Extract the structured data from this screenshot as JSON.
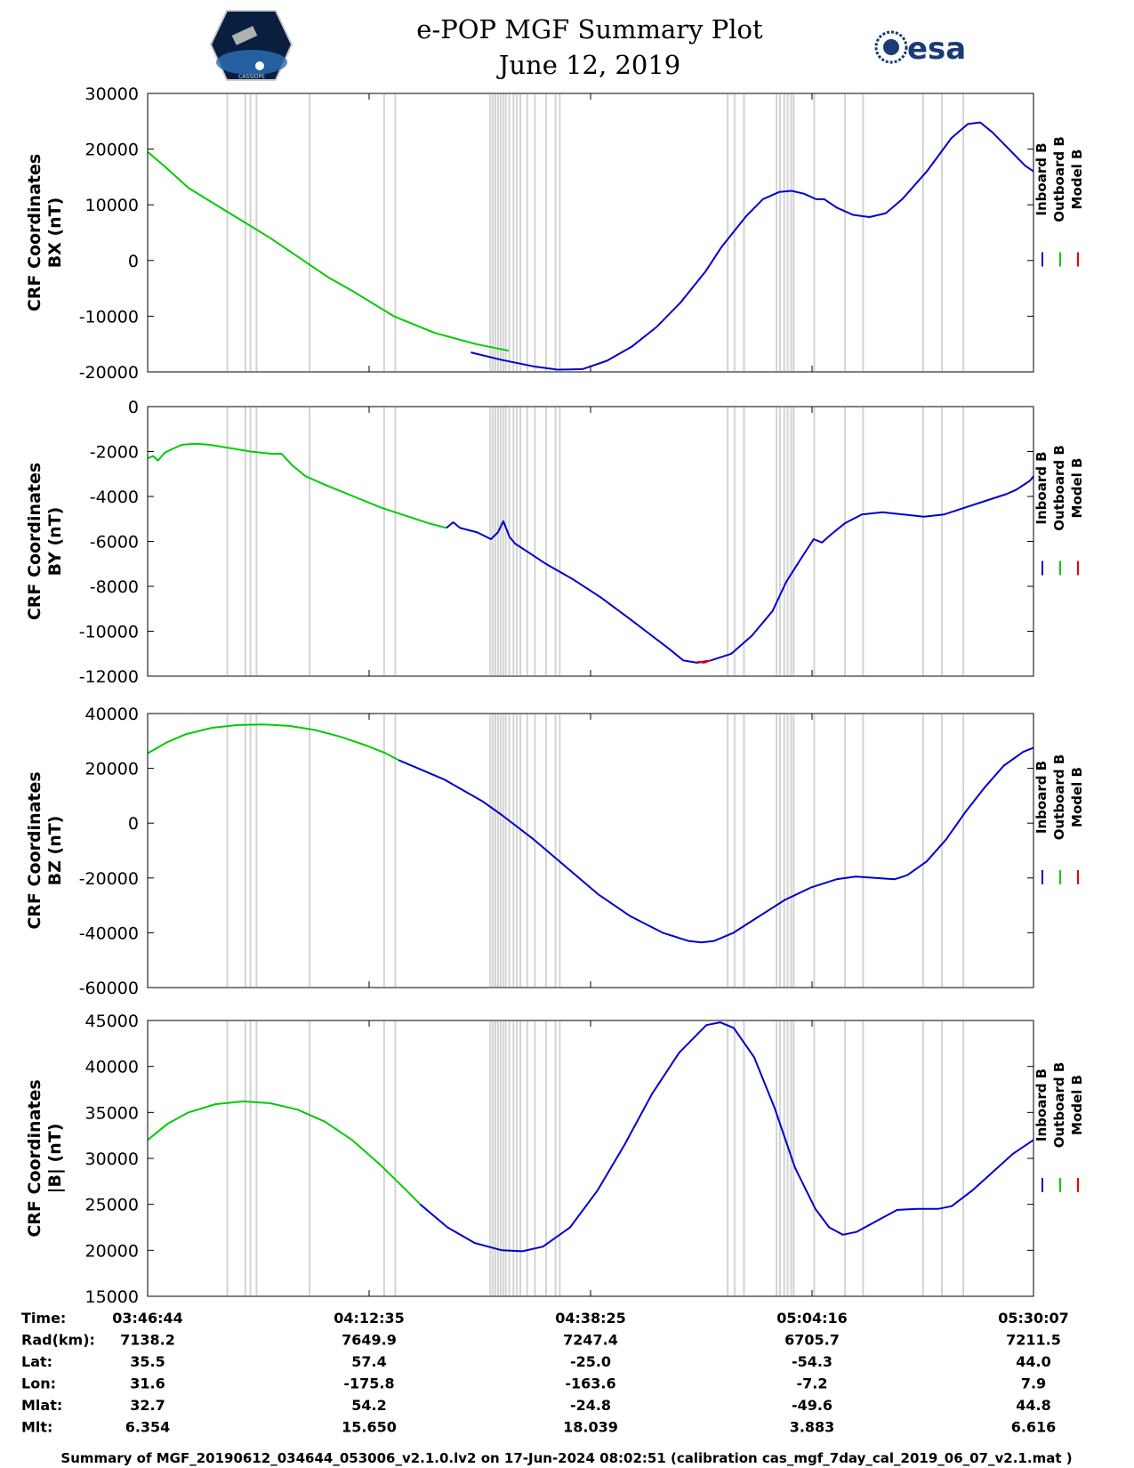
{
  "header": {
    "title_line1": "e-POP MGF Summary Plot",
    "title_line2": "June 12, 2019",
    "cassiope_logo_text": "CASSIOPE",
    "esa_logo_text": "esa"
  },
  "colors": {
    "inboard": "#0000cc",
    "outboard": "#00cc00",
    "model": "#ee0000",
    "gap": "#d3d3d3"
  },
  "legend": {
    "inboard": "Inboard B",
    "outboard": "Outboard B",
    "model": "Model B"
  },
  "time_axis": {
    "labels": [
      "03:46:44",
      "04:12:35",
      "04:38:25",
      "05:04:16",
      "05:30:07"
    ],
    "x_min_minutes": 0,
    "x_max_minutes": 103.4
  },
  "gap_minutes": [
    9.2,
    11.3,
    11.9,
    12.6,
    18.8,
    27.5,
    28.8,
    39.9,
    40.2,
    40.5,
    40.8,
    41.1,
    41.4,
    41.7,
    42.1,
    42.6,
    43.0,
    43.4,
    44.2,
    45.1,
    46.4,
    47.5,
    48.0,
    67.6,
    68.4,
    69.5,
    73.3,
    73.7,
    74.2,
    74.6,
    75.0,
    75.3,
    77.7,
    81.3,
    83.4,
    90.4,
    92.6,
    95.1
  ],
  "chart_data": [
    {
      "type": "line",
      "name": "BX",
      "ylabel_line1": "CRF Coordinates",
      "ylabel_line2": "BX (nT)",
      "ylim": [
        -20000,
        30000
      ],
      "yticks": [
        "30000",
        "20000",
        "10000",
        "0",
        "-10000",
        "-20000"
      ],
      "tickvals": [
        30000,
        20000,
        10000,
        0,
        -10000,
        -20000
      ],
      "outboard": [
        [
          0,
          19500
        ],
        [
          2,
          17000
        ],
        [
          5,
          13000
        ],
        [
          10,
          8500
        ],
        [
          15,
          4000
        ],
        [
          19,
          0
        ],
        [
          20,
          -1000
        ],
        [
          22,
          -3000
        ],
        [
          25,
          -5500
        ],
        [
          30,
          -10000
        ],
        [
          35,
          -13000
        ],
        [
          40,
          -15000
        ],
        [
          44,
          -16200
        ]
      ],
      "inboard": [
        [
          39.4,
          -16500
        ],
        [
          43,
          -17800
        ],
        [
          47,
          -19000
        ],
        [
          50,
          -19600
        ],
        [
          53,
          -19500
        ],
        [
          56,
          -18000
        ],
        [
          59,
          -15500
        ],
        [
          62,
          -12000
        ],
        [
          65,
          -7500
        ],
        [
          68,
          -2000
        ],
        [
          70,
          2500
        ],
        [
          73,
          8000
        ],
        [
          75,
          11000
        ],
        [
          77,
          12300
        ],
        [
          78.5,
          12500
        ],
        [
          80,
          12000
        ],
        [
          81.5,
          11000
        ],
        [
          82.5,
          11000
        ],
        [
          84,
          9500
        ],
        [
          86,
          8200
        ],
        [
          88,
          7800
        ],
        [
          90,
          8500
        ],
        [
          92,
          11000
        ],
        [
          95,
          16000
        ],
        [
          98,
          22000
        ],
        [
          100,
          24500
        ],
        [
          101.5,
          24800
        ],
        [
          103,
          23000
        ],
        [
          105,
          20000
        ],
        [
          107,
          17000
        ],
        [
          108,
          16000
        ]
      ]
    },
    {
      "type": "line",
      "name": "BY",
      "ylabel_line1": "CRF Coordinates",
      "ylabel_line2": "BY (nT)",
      "ylim": [
        -12000,
        0
      ],
      "yticks": [
        "0",
        "-2000",
        "-4000",
        "-6000",
        "-8000",
        "-10000",
        "-12000"
      ],
      "tickvals": [
        0,
        -2000,
        -4000,
        -6000,
        -8000,
        -10000,
        -12000
      ],
      "outboard": [
        [
          0,
          -2300
        ],
        [
          0.8,
          -2200
        ],
        [
          1.5,
          -2400
        ],
        [
          2.5,
          -2050
        ],
        [
          3.5,
          -1900
        ],
        [
          5,
          -1700
        ],
        [
          7,
          -1650
        ],
        [
          9,
          -1700
        ],
        [
          12,
          -1850
        ],
        [
          15,
          -2000
        ],
        [
          18,
          -2100
        ],
        [
          19.5,
          -2100
        ],
        [
          21,
          -2600
        ],
        [
          23,
          -3100
        ],
        [
          26,
          -3500
        ],
        [
          30,
          -4000
        ],
        [
          34,
          -4500
        ],
        [
          38,
          -4900
        ],
        [
          41,
          -5200
        ],
        [
          43.5,
          -5400
        ]
      ],
      "inboard": [
        [
          43.5,
          -5400
        ],
        [
          44.5,
          -5150
        ],
        [
          45.5,
          -5400
        ],
        [
          48,
          -5600
        ],
        [
          50,
          -5900
        ],
        [
          51,
          -5600
        ],
        [
          51.8,
          -5100
        ],
        [
          52.7,
          -5800
        ],
        [
          53.5,
          -6100
        ],
        [
          55,
          -6400
        ],
        [
          58,
          -7000
        ],
        [
          62,
          -7700
        ],
        [
          66,
          -8500
        ],
        [
          70,
          -9400
        ],
        [
          73,
          -10100
        ],
        [
          76,
          -10800
        ],
        [
          78,
          -11300
        ],
        [
          80,
          -11400
        ],
        [
          82,
          -11300
        ],
        [
          85,
          -11000
        ],
        [
          88,
          -10200
        ],
        [
          91,
          -9100
        ],
        [
          93,
          -7800
        ],
        [
          95.5,
          -6600
        ],
        [
          97,
          -5900
        ],
        [
          98.2,
          -6050
        ],
        [
          99.5,
          -5700
        ],
        [
          101.5,
          -5200
        ],
        [
          104,
          -4800
        ],
        [
          107,
          -4700
        ],
        [
          110,
          -4800
        ],
        [
          113,
          -4900
        ],
        [
          116,
          -4800
        ],
        [
          119,
          -4500
        ],
        [
          122,
          -4200
        ],
        [
          125,
          -3900
        ],
        [
          126.5,
          -3700
        ],
        [
          127.5,
          -3500
        ],
        [
          128.5,
          -3300
        ],
        [
          129,
          -3100
        ]
      ],
      "model": [
        [
          80,
          -11350
        ],
        [
          81,
          -11400
        ],
        [
          82,
          -11300
        ]
      ]
    },
    {
      "type": "line",
      "name": "BZ",
      "ylabel_line1": "CRF Coordinates",
      "ylabel_line2": "BZ (nT)",
      "ylim": [
        -60000,
        40000
      ],
      "yticks": [
        "40000",
        "20000",
        "0",
        "-20000",
        "-40000",
        "-60000"
      ],
      "tickvals": [
        40000,
        20000,
        0,
        -20000,
        -40000,
        -60000
      ],
      "outboard": [
        [
          0,
          25500
        ],
        [
          3,
          29500
        ],
        [
          6,
          32500
        ],
        [
          10,
          34800
        ],
        [
          14,
          35800
        ],
        [
          18,
          36000
        ],
        [
          22,
          35500
        ],
        [
          26,
          34000
        ],
        [
          30,
          31500
        ],
        [
          34,
          28300
        ],
        [
          37,
          25500
        ],
        [
          39,
          23000
        ]
      ],
      "inboard": [
        [
          39,
          23000
        ],
        [
          42,
          20000
        ],
        [
          46,
          16000
        ],
        [
          49,
          12000
        ],
        [
          52,
          8000
        ],
        [
          55,
          3000
        ],
        [
          60,
          -6000
        ],
        [
          65,
          -16000
        ],
        [
          70,
          -26000
        ],
        [
          75,
          -34000
        ],
        [
          80,
          -40000
        ],
        [
          84,
          -43000
        ],
        [
          86,
          -43500
        ],
        [
          88,
          -43000
        ],
        [
          91,
          -40000
        ],
        [
          95,
          -34000
        ],
        [
          99,
          -28000
        ],
        [
          103,
          -23500
        ],
        [
          107,
          -20500
        ],
        [
          110,
          -19500
        ],
        [
          113,
          -20000
        ],
        [
          116,
          -20500
        ],
        [
          118,
          -19000
        ],
        [
          121,
          -14000
        ],
        [
          124,
          -6000
        ],
        [
          127,
          4000
        ],
        [
          130,
          13000
        ],
        [
          133,
          21000
        ],
        [
          136,
          26000
        ],
        [
          137.6,
          27500
        ]
      ]
    },
    {
      "type": "line",
      "name": "|B|",
      "ylabel_line1": "CRF Coordinates",
      "ylabel_line2": "|B| (nT)",
      "ylim": [
        15000,
        45000
      ],
      "yticks": [
        "45000",
        "40000",
        "35000",
        "30000",
        "25000",
        "20000",
        "15000"
      ],
      "tickvals": [
        45000,
        40000,
        35000,
        30000,
        25000,
        20000,
        15000
      ],
      "outboard": [
        [
          0,
          32000
        ],
        [
          3,
          33800
        ],
        [
          6,
          35000
        ],
        [
          10,
          35900
        ],
        [
          14,
          36200
        ],
        [
          18,
          36000
        ],
        [
          22,
          35300
        ],
        [
          26,
          34000
        ],
        [
          30,
          32000
        ],
        [
          34,
          29400
        ],
        [
          38,
          26500
        ],
        [
          40,
          25000
        ]
      ],
      "inboard": [
        [
          40,
          25000
        ],
        [
          44,
          22500
        ],
        [
          48,
          20800
        ],
        [
          52,
          20000
        ],
        [
          55,
          19900
        ],
        [
          58,
          20400
        ],
        [
          62,
          22500
        ],
        [
          66,
          26500
        ],
        [
          70,
          31500
        ],
        [
          74,
          37000
        ],
        [
          78,
          41500
        ],
        [
          82,
          44500
        ],
        [
          84,
          44800
        ],
        [
          86,
          44200
        ],
        [
          89,
          41000
        ],
        [
          92,
          35500
        ],
        [
          95,
          29000
        ],
        [
          98,
          24500
        ],
        [
          100,
          22500
        ],
        [
          102,
          21700
        ],
        [
          104,
          22000
        ],
        [
          107,
          23200
        ],
        [
          110,
          24400
        ],
        [
          113,
          24500
        ],
        [
          116,
          24500
        ],
        [
          118,
          24800
        ],
        [
          121,
          26500
        ],
        [
          124,
          28500
        ],
        [
          127,
          30500
        ],
        [
          130,
          32000
        ]
      ]
    }
  ],
  "info_table": {
    "rows": [
      {
        "label": "Time:",
        "values": [
          "03:46:44",
          "04:12:35",
          "04:38:25",
          "05:04:16",
          "05:30:07"
        ]
      },
      {
        "label": "Rad(km):",
        "values": [
          "7138.2",
          "7649.9",
          "7247.4",
          "6705.7",
          "7211.5"
        ]
      },
      {
        "label": "Lat:",
        "values": [
          "35.5",
          "57.4",
          "-25.0",
          "-54.3",
          "44.0"
        ]
      },
      {
        "label": "Lon:",
        "values": [
          "31.6",
          "-175.8",
          "-163.6",
          "-7.2",
          "7.9"
        ]
      },
      {
        "label": "Mlat:",
        "values": [
          "32.7",
          "54.2",
          "-24.8",
          "-49.6",
          "44.8"
        ]
      },
      {
        "label": "Mlt:",
        "values": [
          "6.354",
          "15.650",
          "18.039",
          "3.883",
          "6.616"
        ]
      }
    ]
  },
  "footer": "Summary of MGF_20190612_034644_053006_v2.1.0.lv2 on 17-Jun-2024 08:02:51 (calibration cas_mgf_7day_cal_2019_06_07_v2.1.mat )"
}
